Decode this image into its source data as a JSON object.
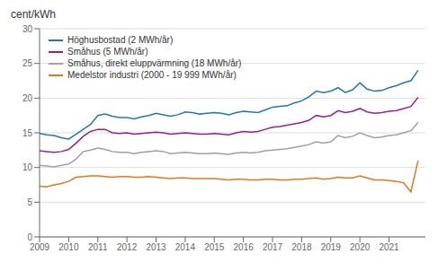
{
  "chart_data": {
    "type": "line",
    "title": "",
    "ylabel": "cent/kWh",
    "xlim": [
      2009,
      2022.25
    ],
    "xticks": [
      2009,
      2010,
      2011,
      2012,
      2013,
      2014,
      2015,
      2016,
      2017,
      2018,
      2019,
      2020,
      2021
    ],
    "ylim": [
      0,
      30
    ],
    "yticks": [
      0,
      5,
      10,
      15,
      20,
      25,
      30
    ],
    "grid": true,
    "legend": "upper left",
    "x": [
      2009,
      2009.25,
      2009.5,
      2009.75,
      2010,
      2010.25,
      2010.5,
      2010.75,
      2011,
      2011.25,
      2011.5,
      2011.75,
      2012,
      2012.25,
      2012.5,
      2012.75,
      2013,
      2013.25,
      2013.5,
      2013.75,
      2014,
      2014.25,
      2014.5,
      2014.75,
      2015,
      2015.25,
      2015.5,
      2015.75,
      2016,
      2016.25,
      2016.5,
      2016.75,
      2017,
      2017.25,
      2017.5,
      2017.75,
      2018,
      2018.25,
      2018.5,
      2018.75,
      2019,
      2019.25,
      2019.5,
      2019.75,
      2020,
      2020.25,
      2020.5,
      2020.75,
      2021,
      2021.25,
      2021.5,
      2021.75,
      2022
    ],
    "series": [
      {
        "name": "Höghusbostad (2 MWh/år)",
        "color": "#2475b8",
        "values": [
          14.9,
          14.7,
          14.6,
          14.3,
          14.1,
          14.8,
          15.5,
          16.2,
          17.5,
          17.7,
          17.4,
          17.2,
          17.2,
          17.0,
          17.3,
          17.5,
          17.8,
          17.6,
          17.4,
          17.6,
          18.0,
          17.9,
          17.7,
          17.8,
          17.9,
          17.8,
          17.6,
          17.9,
          18.1,
          18.0,
          17.9,
          18.3,
          18.7,
          18.8,
          18.9,
          19.3,
          19.6,
          20.2,
          21.0,
          20.8,
          21.0,
          21.5,
          20.8,
          21.2,
          22.2,
          21.3,
          21.0,
          21.1,
          21.5,
          21.8,
          22.2,
          22.5,
          24.0
        ]
      },
      {
        "name": "Småhus (5 MWh/år)",
        "color": "#9b1f8a",
        "values": [
          12.4,
          12.3,
          12.2,
          12.3,
          12.6,
          13.5,
          14.5,
          15.2,
          15.5,
          15.5,
          15.0,
          14.9,
          15.0,
          14.8,
          14.9,
          15.0,
          15.1,
          15.0,
          14.8,
          14.9,
          15.0,
          14.9,
          14.8,
          14.8,
          14.9,
          14.8,
          14.7,
          15.0,
          15.2,
          15.1,
          15.2,
          15.5,
          15.8,
          15.9,
          16.1,
          16.3,
          16.5,
          16.8,
          17.5,
          17.3,
          17.5,
          18.2,
          17.9,
          18.1,
          18.5,
          18.0,
          17.8,
          17.9,
          18.1,
          18.2,
          18.5,
          18.8,
          20.1
        ]
      },
      {
        "name": "Småhus, direkt eluppvärmning (18 MWh/år)",
        "color": "#a0a0a0",
        "values": [
          10.3,
          10.2,
          10.1,
          10.3,
          10.5,
          11.2,
          12.3,
          12.5,
          12.8,
          12.6,
          12.3,
          12.2,
          12.2,
          12.0,
          12.2,
          12.3,
          12.4,
          12.3,
          12.0,
          12.1,
          12.2,
          12.1,
          12.0,
          12.0,
          12.1,
          12.0,
          11.9,
          12.1,
          12.2,
          12.1,
          12.2,
          12.4,
          12.5,
          12.6,
          12.7,
          12.9,
          13.1,
          13.3,
          13.7,
          13.5,
          13.7,
          14.6,
          14.3,
          14.5,
          15.0,
          14.6,
          14.3,
          14.4,
          14.6,
          14.7,
          15.0,
          15.3,
          16.5
        ]
      },
      {
        "name": "Medelstor industri (2000 - 19 999 MWh/år)",
        "color": "#e07820",
        "values": [
          7.3,
          7.2,
          7.5,
          7.7,
          8.0,
          8.6,
          8.7,
          8.8,
          8.8,
          8.7,
          8.6,
          8.7,
          8.7,
          8.6,
          8.6,
          8.7,
          8.6,
          8.5,
          8.4,
          8.5,
          8.5,
          8.4,
          8.4,
          8.4,
          8.4,
          8.3,
          8.2,
          8.3,
          8.3,
          8.2,
          8.2,
          8.3,
          8.3,
          8.2,
          8.2,
          8.3,
          8.3,
          8.4,
          8.5,
          8.3,
          8.4,
          8.6,
          8.5,
          8.5,
          8.8,
          8.5,
          8.2,
          8.2,
          8.1,
          8.0,
          7.8,
          6.5,
          11.0
        ]
      }
    ]
  }
}
